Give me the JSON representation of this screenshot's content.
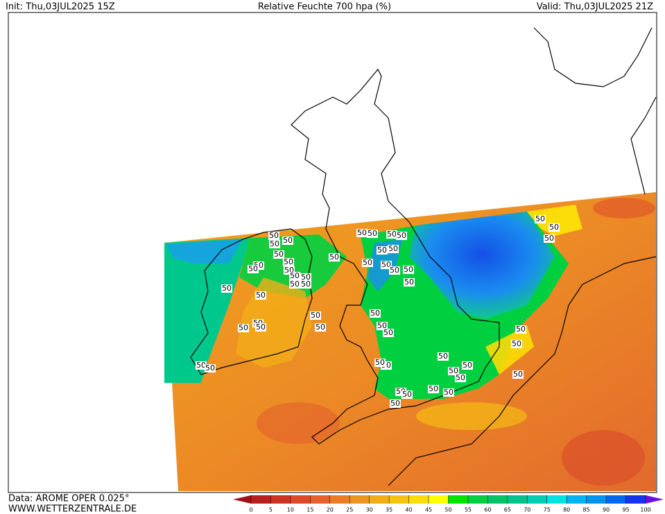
{
  "header": {
    "init": "Init: Thu,03JUL2025 15Z",
    "title": "Relative Feuchte 700 hpa (%)",
    "valid": "Valid: Thu,03JUL2025 21Z"
  },
  "footer": {
    "source": "Data: AROME OPER 0.025°",
    "website": "WWW.WETTERZENTRALE.DE"
  },
  "colorbar": {
    "ticks": [
      0,
      5,
      10,
      15,
      20,
      25,
      30,
      35,
      40,
      45,
      50,
      55,
      60,
      65,
      70,
      75,
      80,
      85,
      90,
      95,
      100
    ],
    "under_color": "#a0101a",
    "over_color": "#6a10e0",
    "colors": [
      "#b8201e",
      "#cc3424",
      "#dc4a28",
      "#e4622a",
      "#ea7c28",
      "#ee9420",
      "#f2ac18",
      "#f6c410",
      "#f9dc08",
      "#ffff00",
      "#00e400",
      "#00d040",
      "#00c466",
      "#00c48c",
      "#00ccb2",
      "#00e2e2",
      "#00b4f0",
      "#0094ee",
      "#0068ee",
      "#1434ee"
    ]
  },
  "contour_labels": [
    "50",
    "50",
    "50",
    "50",
    "50",
    "50",
    "50",
    "50",
    "50",
    "50",
    "50",
    "50",
    "50",
    "50",
    "50",
    "50",
    "50",
    "50",
    "50",
    "50",
    "50",
    "50",
    "50",
    "50",
    "50",
    "50",
    "50",
    "50",
    "50",
    "50",
    "50",
    "50",
    "50",
    "50",
    "50",
    "50",
    "50",
    "50",
    "50",
    "50",
    "50",
    "50",
    "50",
    "50",
    "50",
    "50",
    "50",
    "50",
    "50",
    "50",
    "50",
    "50",
    "50"
  ]
}
